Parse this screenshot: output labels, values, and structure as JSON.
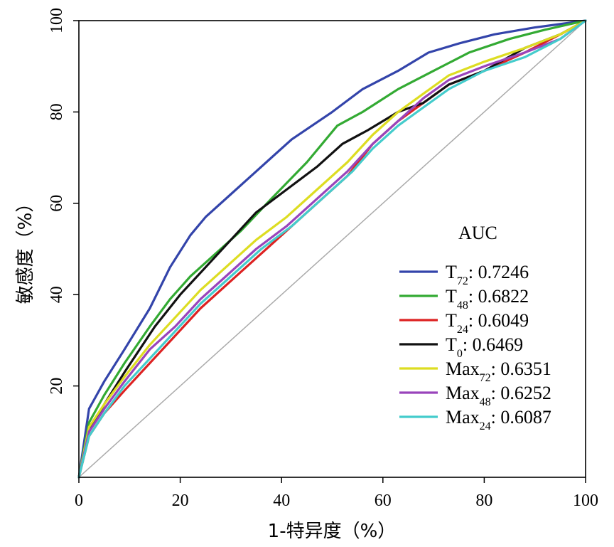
{
  "chart_data": {
    "type": "line",
    "title": "",
    "xlabel": "1-特异度（%）",
    "ylabel": "敏感度（%）",
    "xlim": [
      0,
      100
    ],
    "ylim": [
      0,
      100
    ],
    "x_ticks": [
      "0",
      "20",
      "40",
      "60",
      "80",
      "100"
    ],
    "y_ticks": [
      "20",
      "40",
      "60",
      "80",
      "100"
    ],
    "legend_title": "AUC",
    "legend_position": "bottom-right",
    "reference_line": {
      "name": "chance",
      "color": "#aaaaaa",
      "points": [
        [
          0,
          0
        ],
        [
          100,
          100
        ]
      ]
    },
    "series": [
      {
        "base": "T",
        "sub": "72",
        "auc": ": 0.7246",
        "color": "#3344aa",
        "points": [
          [
            0,
            0
          ],
          [
            2,
            15
          ],
          [
            5,
            21
          ],
          [
            9,
            28
          ],
          [
            14,
            37
          ],
          [
            18,
            46
          ],
          [
            22,
            53
          ],
          [
            25,
            57
          ],
          [
            30,
            62
          ],
          [
            35,
            67
          ],
          [
            42,
            74
          ],
          [
            50,
            80
          ],
          [
            56,
            85
          ],
          [
            63,
            89
          ],
          [
            69,
            93
          ],
          [
            75,
            95
          ],
          [
            82,
            97
          ],
          [
            90,
            98.5
          ],
          [
            100,
            100
          ]
        ]
      },
      {
        "base": "T",
        "sub": "48",
        "auc": ": 0.6822",
        "color": "#33aa33",
        "points": [
          [
            0,
            0
          ],
          [
            2,
            12
          ],
          [
            5,
            18
          ],
          [
            9,
            25
          ],
          [
            14,
            33
          ],
          [
            18,
            39
          ],
          [
            22,
            44
          ],
          [
            27,
            49
          ],
          [
            32,
            54
          ],
          [
            38,
            61
          ],
          [
            45,
            69
          ],
          [
            51,
            77
          ],
          [
            56,
            80
          ],
          [
            63,
            85
          ],
          [
            70,
            89
          ],
          [
            77,
            93
          ],
          [
            85,
            96
          ],
          [
            92,
            98
          ],
          [
            100,
            100
          ]
        ]
      },
      {
        "base": "T",
        "sub": "24",
        "auc": ": 0.6049",
        "color": "#dd2222",
        "points": [
          [
            0,
            0
          ],
          [
            2,
            9
          ],
          [
            5,
            14
          ],
          [
            9,
            19
          ],
          [
            14,
            25
          ],
          [
            19,
            31
          ],
          [
            24,
            37
          ],
          [
            30,
            43
          ],
          [
            36,
            49
          ],
          [
            42,
            55
          ],
          [
            48,
            61
          ],
          [
            53,
            66
          ],
          [
            58,
            73
          ],
          [
            63,
            78
          ],
          [
            68,
            82
          ],
          [
            73,
            86
          ],
          [
            80,
            89
          ],
          [
            88,
            93
          ],
          [
            95,
            97
          ],
          [
            100,
            100
          ]
        ]
      },
      {
        "base": "T",
        "sub": "0",
        "auc": ": 0.6469",
        "color": "#111111",
        "points": [
          [
            0,
            0
          ],
          [
            2,
            10
          ],
          [
            5,
            16
          ],
          [
            9,
            23
          ],
          [
            15,
            33
          ],
          [
            20,
            40
          ],
          [
            25,
            46
          ],
          [
            30,
            52
          ],
          [
            35,
            58
          ],
          [
            41,
            63
          ],
          [
            47,
            68
          ],
          [
            52,
            73
          ],
          [
            57,
            76
          ],
          [
            63,
            80
          ],
          [
            68,
            82
          ],
          [
            73,
            86
          ],
          [
            80,
            89
          ],
          [
            88,
            94
          ],
          [
            95,
            97
          ],
          [
            100,
            100
          ]
        ]
      },
      {
        "base": "Max",
        "sub": "72",
        "auc": ": 0.6351",
        "color": "#dddd22",
        "points": [
          [
            0,
            0
          ],
          [
            2,
            11
          ],
          [
            5,
            16
          ],
          [
            9,
            22
          ],
          [
            14,
            29
          ],
          [
            19,
            35
          ],
          [
            24,
            41
          ],
          [
            29,
            46
          ],
          [
            35,
            52
          ],
          [
            41,
            57
          ],
          [
            47,
            63
          ],
          [
            53,
            69
          ],
          [
            58,
            75
          ],
          [
            63,
            80
          ],
          [
            68,
            84
          ],
          [
            73,
            88
          ],
          [
            80,
            91
          ],
          [
            88,
            94
          ],
          [
            95,
            97
          ],
          [
            100,
            100
          ]
        ]
      },
      {
        "base": "Max",
        "sub": "48",
        "auc": ": 0.6252",
        "color": "#9944bb",
        "points": [
          [
            0,
            0
          ],
          [
            2,
            10
          ],
          [
            5,
            15
          ],
          [
            9,
            21
          ],
          [
            14,
            28
          ],
          [
            19,
            33
          ],
          [
            24,
            39
          ],
          [
            29,
            44
          ],
          [
            35,
            50
          ],
          [
            41,
            55
          ],
          [
            47,
            61
          ],
          [
            53,
            67
          ],
          [
            58,
            73
          ],
          [
            63,
            78
          ],
          [
            68,
            83
          ],
          [
            73,
            87
          ],
          [
            80,
            90
          ],
          [
            88,
            93
          ],
          [
            95,
            96
          ],
          [
            100,
            100
          ]
        ]
      },
      {
        "base": "Max",
        "sub": "24",
        "auc": ": 0.6087",
        "color": "#44cccc",
        "points": [
          [
            0,
            0
          ],
          [
            2,
            9
          ],
          [
            5,
            14
          ],
          [
            9,
            20
          ],
          [
            14,
            26
          ],
          [
            19,
            32
          ],
          [
            24,
            38
          ],
          [
            30,
            44
          ],
          [
            36,
            50
          ],
          [
            42,
            55
          ],
          [
            48,
            61
          ],
          [
            54,
            67
          ],
          [
            58,
            72
          ],
          [
            63,
            77
          ],
          [
            68,
            81
          ],
          [
            73,
            85
          ],
          [
            80,
            89
          ],
          [
            88,
            92
          ],
          [
            95,
            96
          ],
          [
            100,
            100
          ]
        ]
      }
    ]
  }
}
